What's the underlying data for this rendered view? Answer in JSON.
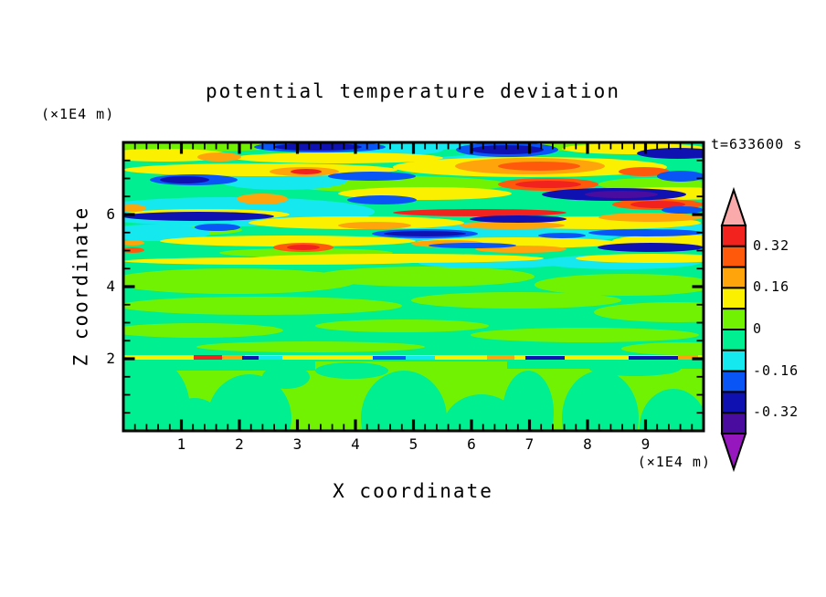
{
  "title": "potential temperature deviation",
  "time_label": "t=633600 s",
  "axes": {
    "x": {
      "label": "X coordinate",
      "unit": "(×1E4 m)",
      "range": [
        0,
        10
      ],
      "major_ticks": [
        1,
        2,
        3,
        4,
        5,
        6,
        7,
        8,
        9
      ],
      "minor_step": 0.2
    },
    "y": {
      "label": "Z coordinate",
      "unit": "(×1E4 m)",
      "range": [
        0,
        8
      ],
      "major_ticks": [
        2,
        4,
        6
      ],
      "minor_step": 0.5
    }
  },
  "colorbar": {
    "labels": [
      {
        "text": "0.32",
        "boundary": 1
      },
      {
        "text": "0.16",
        "boundary": 3
      },
      {
        "text": "0",
        "boundary": 5
      },
      {
        "text": "-0.16",
        "boundary": 7
      },
      {
        "text": "-0.32",
        "boundary": 9
      }
    ],
    "segment_colors_top_to_bottom": [
      "red",
      "orangered",
      "orange",
      "yellow",
      "greenyellow",
      "springgreen",
      "cyan",
      "blue",
      "navy",
      "indigo"
    ],
    "over_color": "pink",
    "under_color": "purple"
  },
  "palette": {
    "red": "#F2231E",
    "orangered": "#FF5A0C",
    "orange": "#FFA40A",
    "yellow": "#FBF000",
    "greenyellow": "#72F203",
    "springgreen": "#00EF90",
    "cyan": "#16E8F0",
    "blue": "#0A55F5",
    "navy": "#0F12B0",
    "indigo": "#4A0C9E",
    "pink": "#FBAAAB",
    "purple": "#9617BE",
    "frame": "#000000"
  },
  "chart_data": {
    "type": "heatmap",
    "title": "potential temperature deviation",
    "xlabel": "X coordinate (×1E4 m)",
    "ylabel": "Z coordinate (×1E4 m)",
    "xlim": [
      0,
      10
    ],
    "ylim": [
      0,
      8
    ],
    "time_annotation": "t=633600 s",
    "contour_interval": 0.08,
    "labeled_levels": [
      0.32,
      0.16,
      0,
      -0.16,
      -0.32
    ],
    "value_range_shown": [
      -0.4,
      0.4
    ],
    "legend_position": "right-colorbar-with-over-under-arrows",
    "grid": false,
    "description": "Filled contour cross-section: strongly layered wave streaks (alternating yellow/orange/red positive and cyan/blue/navy negative anomalies up to ±0.4) between z≈5 and z≈8; near-zero green field (|dev|<0.08) from z≈2.2 to 5; a thin perturbed interface line with small red/orange/blue/navy patches at z≈2; rounded convective blobs of weak positive/negative anomaly below z≈2."
  },
  "field_shapes": [
    [
      "r",
      "springgreen",
      0,
      0,
      635,
      316
    ],
    [
      "e",
      "greenyellow",
      80,
      4,
      95,
      6
    ],
    [
      "e",
      "greenyellow",
      500,
      3,
      85,
      6
    ],
    [
      "e",
      "greenyellow",
      300,
      46,
      120,
      9
    ],
    [
      "e",
      "greenyellow",
      580,
      46,
      60,
      7
    ],
    [
      "e",
      "greenyellow",
      60,
      96,
      70,
      6
    ],
    [
      "e",
      "greenyellow",
      620,
      96,
      45,
      6
    ],
    [
      "e",
      "greenyellow",
      200,
      121,
      95,
      5
    ],
    [
      "e",
      "greenyellow",
      120,
      152,
      135,
      14
    ],
    [
      "e",
      "greenyellow",
      330,
      147,
      120,
      11
    ],
    [
      "e",
      "greenyellow",
      550,
      156,
      100,
      12
    ],
    [
      "e",
      "greenyellow",
      150,
      179,
      155,
      10
    ],
    [
      "e",
      "greenyellow",
      430,
      173,
      115,
      9
    ],
    [
      "e",
      "greenyellow",
      605,
      186,
      90,
      11
    ],
    [
      "e",
      "greenyellow",
      80,
      206,
      95,
      8
    ],
    [
      "e",
      "greenyellow",
      305,
      201,
      95,
      7
    ],
    [
      "e",
      "greenyellow",
      505,
      211,
      125,
      8
    ],
    [
      "e",
      "greenyellow",
      205,
      224,
      125,
      6
    ],
    [
      "e",
      "greenyellow",
      615,
      226,
      70,
      7
    ],
    [
      "r",
      "greenyellow",
      0,
      240,
      635,
      76
    ],
    [
      "r",
      "springgreen",
      0,
      238,
      210,
      12
    ],
    [
      "r",
      "springgreen",
      420,
      238,
      215,
      10
    ],
    [
      "e",
      "springgreen",
      25,
      292,
      48,
      58
    ],
    [
      "e",
      "springgreen",
      78,
      312,
      32,
      32
    ],
    [
      "e",
      "springgreen",
      138,
      302,
      46,
      48
    ],
    [
      "e",
      "springgreen",
      178,
      257,
      26,
      13
    ],
    [
      "e",
      "springgreen",
      307,
      302,
      47,
      52
    ],
    [
      "e",
      "springgreen",
      392,
      312,
      42,
      36
    ],
    [
      "e",
      "springgreen",
      443,
      296,
      28,
      46
    ],
    [
      "e",
      "springgreen",
      522,
      302,
      42,
      52
    ],
    [
      "e",
      "springgreen",
      602,
      312,
      37,
      42
    ],
    [
      "e",
      "springgreen",
      250,
      250,
      40,
      9
    ],
    [
      "e",
      "springgreen",
      560,
      248,
      50,
      8
    ],
    [
      "r",
      "yellow",
      0,
      233,
      635,
      5
    ],
    [
      "r",
      "red",
      77,
      233,
      34,
      5
    ],
    [
      "r",
      "orange",
      108,
      233,
      25,
      5
    ],
    [
      "r",
      "navy",
      130,
      234,
      20,
      4
    ],
    [
      "r",
      "cyan",
      148,
      234,
      26,
      4
    ],
    [
      "r",
      "orange",
      398,
      233,
      30,
      5
    ],
    [
      "r",
      "blue",
      273,
      234,
      38,
      4
    ],
    [
      "r",
      "cyan",
      309,
      234,
      32,
      4
    ],
    [
      "r",
      "navy",
      440,
      234,
      43,
      4
    ],
    [
      "r",
      "navy",
      553,
      234,
      55,
      4
    ],
    [
      "r",
      "orange",
      607,
      233,
      22,
      5
    ],
    [
      "e",
      "cyan",
      115,
      76,
      160,
      16
    ],
    [
      "e",
      "cyan",
      175,
      42,
      70,
      10
    ],
    [
      "e",
      "cyan",
      420,
      100,
      125,
      13
    ],
    [
      "e",
      "cyan",
      390,
      22,
      65,
      8
    ],
    [
      "e",
      "cyan",
      300,
      8,
      50,
      6
    ],
    [
      "e",
      "cyan",
      344,
      3,
      45,
      5
    ],
    [
      "e",
      "cyan",
      545,
      131,
      88,
      8
    ],
    [
      "e",
      "cyan",
      598,
      96,
      60,
      9
    ],
    [
      "e",
      "cyan",
      403,
      132,
      80,
      6
    ],
    [
      "e",
      "cyan",
      35,
      99,
      60,
      9
    ],
    [
      "e",
      "cyan",
      605,
      98,
      50,
      11
    ],
    [
      "e",
      "yellow",
      45,
      14,
      72,
      7
    ],
    [
      "e",
      "yellow",
      235,
      17,
      115,
      6
    ],
    [
      "e",
      "yellow",
      560,
      7,
      80,
      6
    ],
    [
      "e",
      "yellow",
      150,
      30,
      150,
      7
    ],
    [
      "e",
      "yellow",
      445,
      27,
      150,
      11
    ],
    [
      "e",
      "yellow",
      330,
      56,
      95,
      7
    ],
    [
      "e",
      "yellow",
      600,
      56,
      80,
      7
    ],
    [
      "e",
      "yellow",
      90,
      79,
      92,
      6
    ],
    [
      "e",
      "yellow",
      255,
      88,
      118,
      7
    ],
    [
      "e",
      "yellow",
      520,
      88,
      112,
      7
    ],
    [
      "e",
      "yellow",
      180,
      108,
      140,
      6
    ],
    [
      "e",
      "yellow",
      430,
      110,
      112,
      6
    ],
    [
      "e",
      "yellow",
      605,
      108,
      70,
      7
    ],
    [
      "e",
      "yellow",
      300,
      127,
      160,
      5
    ],
    [
      "e",
      "yellow",
      580,
      127,
      85,
      5
    ],
    [
      "e",
      "yellow",
      170,
      130,
      170,
      4
    ],
    [
      "e",
      "orange",
      105,
      16,
      24,
      5
    ],
    [
      "e",
      "orange",
      445,
      26,
      82,
      9
    ],
    [
      "e",
      "orangered",
      455,
      26,
      45,
      5
    ],
    [
      "e",
      "orangered",
      570,
      32,
      28,
      5
    ],
    [
      "e",
      "orange",
      198,
      32,
      38,
      5
    ],
    [
      "e",
      "red",
      200,
      32,
      17,
      3
    ],
    [
      "e",
      "orange",
      152,
      62,
      28,
      6
    ],
    [
      "e",
      "orangered",
      465,
      46,
      55,
      7
    ],
    [
      "e",
      "red",
      465,
      46,
      36,
      4
    ],
    [
      "e",
      "orangered",
      585,
      68,
      50,
      6
    ],
    [
      "e",
      "red",
      585,
      68,
      30,
      4
    ],
    [
      "e",
      "orange",
      10,
      72,
      15,
      4
    ],
    [
      "e",
      "red",
      390,
      77,
      95,
      4
    ],
    [
      "e",
      "orange",
      577,
      82,
      57,
      5
    ],
    [
      "e",
      "orange",
      275,
      91,
      40,
      4
    ],
    [
      "e",
      "orange",
      425,
      91,
      58,
      4
    ],
    [
      "e",
      "orange",
      355,
      111,
      40,
      4
    ],
    [
      "e",
      "orange",
      435,
      117,
      50,
      4
    ],
    [
      "e",
      "orange",
      10,
      110,
      13,
      3
    ],
    [
      "e",
      "orangered",
      10,
      118,
      13,
      3
    ],
    [
      "e",
      "orangered",
      197,
      115,
      33,
      5
    ],
    [
      "e",
      "red",
      197,
      115,
      18,
      3
    ],
    [
      "e",
      "blue",
      215,
      5,
      72,
      6
    ],
    [
      "e",
      "navy",
      213,
      5,
      48,
      4
    ],
    [
      "e",
      "blue",
      420,
      8,
      56,
      8
    ],
    [
      "e",
      "navy",
      420,
      8,
      40,
      5
    ],
    [
      "e",
      "navy",
      607,
      12,
      45,
      6
    ],
    [
      "e",
      "blue",
      77,
      41,
      48,
      6
    ],
    [
      "e",
      "navy",
      67,
      41,
      27,
      4
    ],
    [
      "e",
      "blue",
      272,
      37,
      48,
      5
    ],
    [
      "e",
      "blue",
      610,
      37,
      26,
      6
    ],
    [
      "e",
      "navy",
      537,
      57,
      79,
      7
    ],
    [
      "e",
      "indigo",
      545,
      57,
      40,
      4
    ],
    [
      "e",
      "blue",
      283,
      63,
      38,
      5
    ],
    [
      "e",
      "blue",
      612,
      74,
      23,
      4
    ],
    [
      "e",
      "navy",
      82,
      81,
      83,
      5
    ],
    [
      "e",
      "navy",
      432,
      84,
      53,
      4
    ],
    [
      "e",
      "blue",
      103,
      93,
      25,
      4
    ],
    [
      "e",
      "blue",
      330,
      100,
      58,
      5
    ],
    [
      "e",
      "navy",
      330,
      100,
      45,
      3
    ],
    [
      "e",
      "blue",
      480,
      102,
      26,
      3
    ],
    [
      "e",
      "blue",
      572,
      99,
      63,
      4
    ],
    [
      "e",
      "blue",
      382,
      113,
      48,
      3
    ],
    [
      "e",
      "navy",
      577,
      115,
      58,
      5
    ]
  ]
}
